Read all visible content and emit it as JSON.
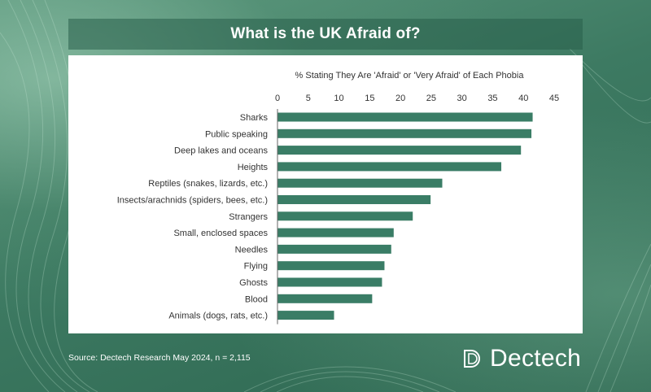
{
  "header": {
    "title": "What is the UK Afraid of?"
  },
  "footer": {
    "source": "Source: Dectech Research May 2024, n = 2,115",
    "brand": "Dectech",
    "logo_icon": "dectech-d-logo-icon"
  },
  "colors": {
    "bar": "#3a7d66",
    "page_bg": "#2f6b55",
    "axis_text": "#333333"
  },
  "chart_data": {
    "type": "bar",
    "orientation": "horizontal",
    "title": "% Stating They Are 'Afraid' or 'Very Afraid' of Each Phobia",
    "xlabel": "",
    "ylabel": "",
    "xlim": [
      0,
      45
    ],
    "x_ticks": [
      0,
      5,
      10,
      15,
      20,
      25,
      30,
      35,
      40,
      45
    ],
    "x_axis_position": "top",
    "grid": false,
    "categories": [
      "Sharks",
      "Public speaking",
      "Deep lakes and oceans",
      "Heights",
      "Reptiles (snakes, lizards, etc.)",
      "Insects/arachnids (spiders, bees, etc.)",
      "Strangers",
      "Small, enclosed spaces",
      "Needles",
      "Flying",
      "Ghosts",
      "Blood",
      "Animals (dogs, rats, etc.)"
    ],
    "values": [
      41.5,
      41.3,
      39.6,
      36.4,
      26.8,
      24.9,
      22.0,
      18.9,
      18.5,
      17.4,
      17.0,
      15.4,
      9.2
    ]
  }
}
